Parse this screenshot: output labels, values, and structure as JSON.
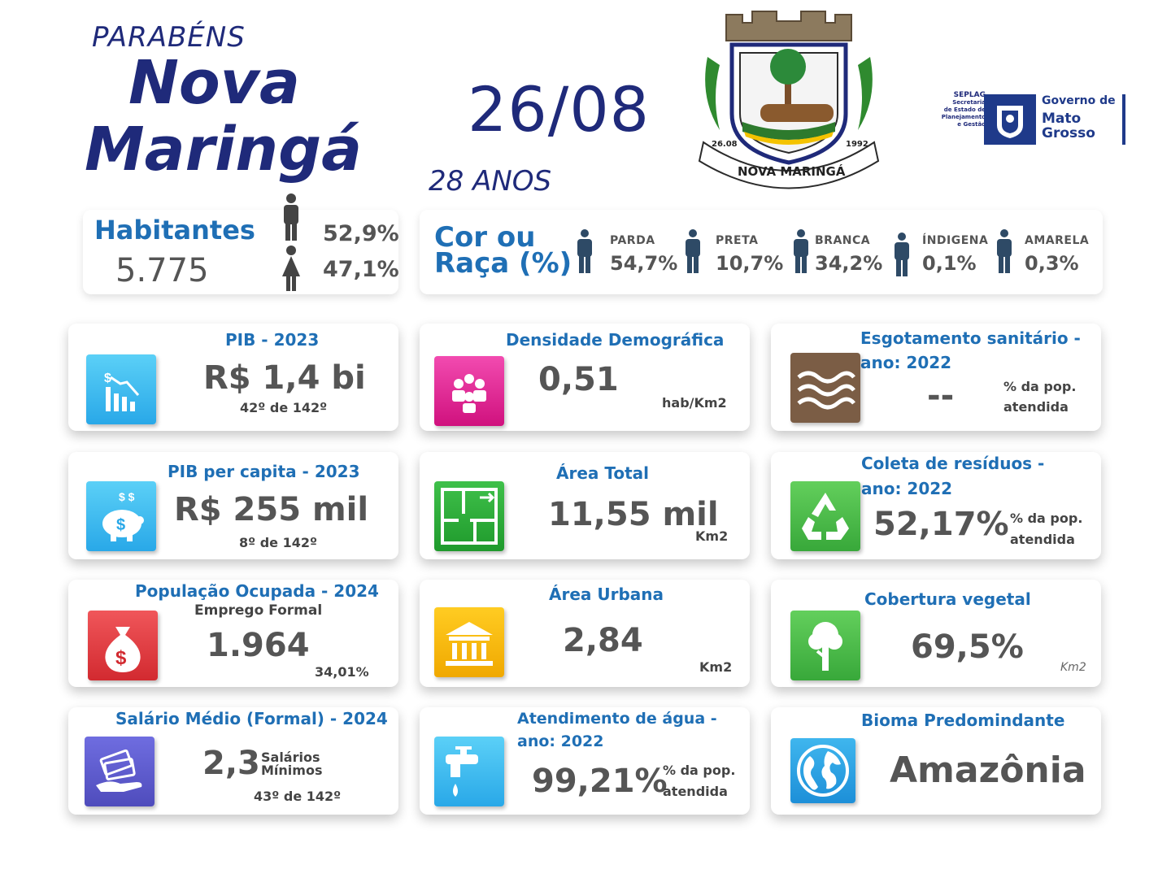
{
  "header": {
    "parabens": "PARABÉNS",
    "city_line1": "Nova",
    "city_line2": "Maringá",
    "date": "26/08",
    "age": "28 ANOS",
    "crest_text": "NOVA MARINGÁ",
    "crest_left": "26.08",
    "crest_right": "1992",
    "gov_seplag": "SEPLAG",
    "gov_sec_lines": [
      "Secretaria",
      "de Estado de",
      "Planejamento",
      "e Gestão"
    ],
    "gov_line1": "Governo de",
    "gov_line2": "Mato",
    "gov_line3": "Grosso"
  },
  "habitantes": {
    "label": "Habitantes",
    "value": "5.775",
    "male_pct": "52,9%",
    "female_pct": "47,1%"
  },
  "raca": {
    "label_line1": "Cor ou",
    "label_line2": "Raça (%)",
    "items": [
      {
        "label": "PARDA",
        "value": "54,7%"
      },
      {
        "label": "PRETA",
        "value": "10,7%"
      },
      {
        "label": "BRANCA",
        "value": "34,2%"
      },
      {
        "label": "ÍNDIGENA",
        "value": "0,1%"
      },
      {
        "label": "AMARELA",
        "value": "0,3%"
      }
    ]
  },
  "cards": {
    "pib": {
      "title": "PIB - 2023",
      "value": "R$ 1,4 bi",
      "rank": "42º de 142º",
      "icon": "chart-down-icon",
      "color": "#3fb6ee"
    },
    "densidade": {
      "title": "Densidade Demográfica",
      "value": "0,51",
      "unit": "hab/Km2",
      "icon": "people-group-icon",
      "color": "#e0148e"
    },
    "esgoto": {
      "title_line1": "Esgotamento sanitário -",
      "title_line2": "ano: 2022",
      "value": "--",
      "unit_line1": "% da pop.",
      "unit_line2": "atendida",
      "icon": "waves-icon",
      "color": "#7b5d45"
    },
    "pib_pc": {
      "title": "PIB per capita - 2023",
      "value": "R$ 255 mil",
      "rank": "8º de 142º",
      "icon": "piggy-bank-icon",
      "color": "#40b5ea"
    },
    "area_total": {
      "title": "Área Total",
      "value": "11,55 mil",
      "unit": "Km2",
      "icon": "floor-plan-icon",
      "color": "#2fa83a"
    },
    "residuos": {
      "title_line1": "Coleta de resíduos -",
      "title_line2": "ano: 2022",
      "value": "52,17%",
      "unit_line1": "% da pop.",
      "unit_line2": "atendida",
      "icon": "recycle-icon",
      "color": "#4cbb47"
    },
    "pop_ocupada": {
      "title": "População Ocupada - 2024",
      "subtitle": "Emprego Formal",
      "value": "1.964",
      "pct": "34,01%",
      "icon": "money-bag-icon",
      "color": "#e03a3e"
    },
    "area_urbana": {
      "title": "Área Urbana",
      "value": "2,84",
      "unit": "Km2",
      "icon": "bank-building-icon",
      "color": "#f5b400"
    },
    "cobertura": {
      "title": "Cobertura vegetal",
      "value": "69,5%",
      "unit": "Km2",
      "icon": "tree-icon",
      "color": "#4cbb47"
    },
    "salario": {
      "title": "Salário Médio (Formal) - 2024",
      "value": "2,3",
      "unit_line1": "Salários",
      "unit_line2": "Mínimos",
      "rank": "43º de 142º",
      "icon": "cash-hand-icon",
      "color": "#5a58c8"
    },
    "agua": {
      "title_line1": "Atendimento de água -",
      "title_line2": "ano: 2022",
      "value": "99,21%",
      "unit_line1": "% da pop.",
      "unit_line2": "atendida",
      "icon": "faucet-icon",
      "color": "#2fa8e6"
    },
    "bioma": {
      "title": "Bioma Predomindante",
      "value": "Amazônia",
      "icon": "globe-icon",
      "color": "#1d8fd8"
    }
  }
}
